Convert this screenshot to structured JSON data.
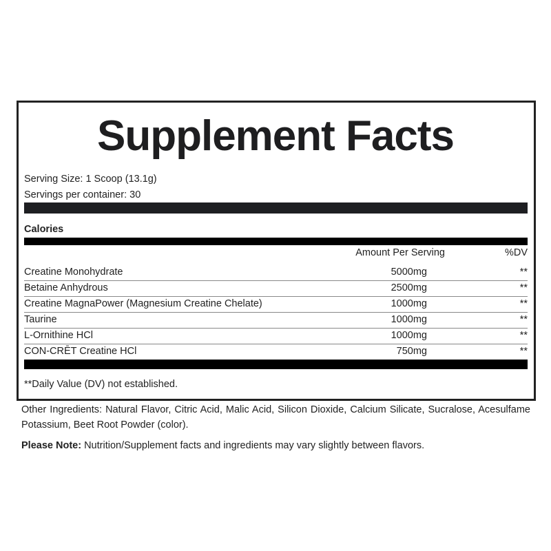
{
  "title": "Supplement Facts",
  "serving_size": "Serving Size: 1 Scoop (13.1g)",
  "servings_per_container": "Servings per container: 30",
  "calories_label": "Calories",
  "header": {
    "amount": "Amount Per Serving",
    "dv": "%DV"
  },
  "rows": [
    {
      "name": "Creatine Monohydrate",
      "amount": "5000mg",
      "dv": "**"
    },
    {
      "name": "Betaine Anhydrous",
      "amount": "2500mg",
      "dv": "**"
    },
    {
      "name": "Creatine MagnaPower (Magnesium Creatine Chelate)",
      "amount": "1000mg",
      "dv": "**"
    },
    {
      "name": "Taurine",
      "amount": "1000mg",
      "dv": "**"
    },
    {
      "name": "L-Ornithine HCl",
      "amount": "1000mg",
      "dv": "**"
    },
    {
      "name": "CON-CRĒT Creatine HCl",
      "amount": "750mg",
      "dv": "**"
    }
  ],
  "footnote": "**Daily Value (DV) not established.",
  "other_ingredients": "Other Ingredients: Natural Flavor, Citric Acid, Malic Acid, Silicon Dioxide, Calcium Silicate, Sucralose, Acesulfame Potassium, Beet Root Powder (color).",
  "note_label": "Please Note:",
  "note_text": " Nutrition/Supplement facts and ingredients may vary slightly between flavors."
}
